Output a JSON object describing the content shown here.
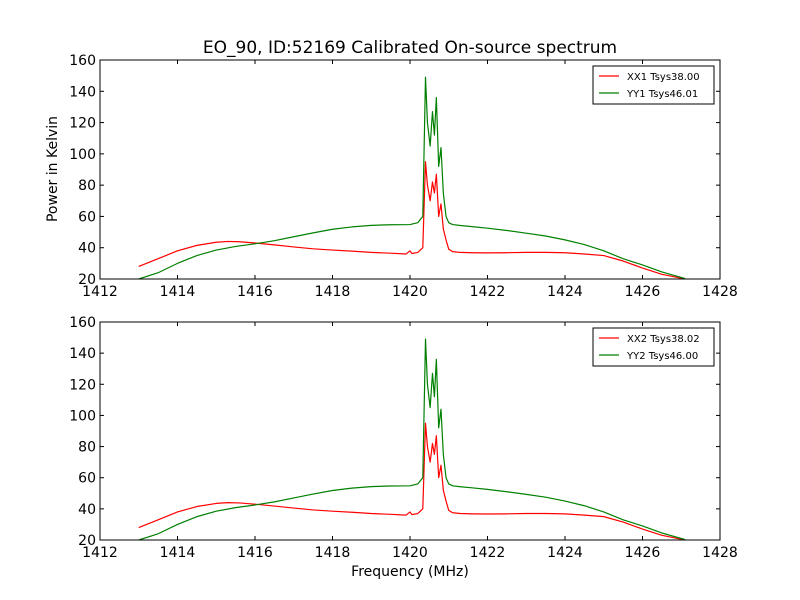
{
  "chart_data": {
    "type": "line",
    "title": "EO_90, ID:52169 Calibrated On-source spectrum",
    "xlabel": "Frequency (MHz)",
    "ylabel": "Power in Kelvin",
    "xlim": [
      1412,
      1428
    ],
    "ylim": [
      20,
      160
    ],
    "xticks": [
      "1412",
      "1414",
      "1416",
      "1418",
      "1420",
      "1422",
      "1424",
      "1426",
      "1428"
    ],
    "yticks": [
      "20",
      "40",
      "60",
      "80",
      "100",
      "120",
      "140",
      "160"
    ],
    "grid": false,
    "legend_position": "top-right",
    "panels": [
      {
        "series": [
          {
            "name": "XX1 Tsys38.00",
            "color": "#ff0000",
            "x": [
              1413.0,
              1413.5,
              1414.0,
              1414.5,
              1415.0,
              1415.3,
              1415.6,
              1416.0,
              1416.5,
              1417.0,
              1417.5,
              1418.0,
              1418.5,
              1419.0,
              1419.5,
              1419.9,
              1420.0,
              1420.05,
              1420.2,
              1420.33,
              1420.4,
              1420.45,
              1420.52,
              1420.58,
              1420.63,
              1420.68,
              1420.74,
              1420.8,
              1420.86,
              1420.93,
              1421.0,
              1421.1,
              1421.3,
              1421.6,
              1422.0,
              1422.5,
              1423.0,
              1423.5,
              1424.0,
              1424.5,
              1425.0,
              1425.5,
              1426.0,
              1426.5,
              1427.0,
              1427.1
            ],
            "y": [
              28,
              33,
              38,
              41.5,
              43.5,
              44,
              43.8,
              43,
              41.8,
              40.5,
              39.3,
              38.5,
              37.8,
              37,
              36.5,
              36,
              38,
              36.3,
              37,
              40,
              95,
              80,
              70,
              82,
              75,
              87,
              60,
              68,
              52,
              45,
              39,
              37.5,
              37,
              36.8,
              36.7,
              36.8,
              37,
              37,
              36.8,
              36,
              35,
              31.5,
              27,
              23,
              20.5,
              20
            ]
          },
          {
            "name": "YY1 Tsys46.01",
            "color": "#008000",
            "x": [
              1413.0,
              1413.5,
              1414.0,
              1414.5,
              1415.0,
              1415.5,
              1416.0,
              1416.5,
              1417.0,
              1417.5,
              1418.0,
              1418.5,
              1419.0,
              1419.5,
              1420.0,
              1420.2,
              1420.33,
              1420.4,
              1420.45,
              1420.52,
              1420.58,
              1420.63,
              1420.68,
              1420.74,
              1420.8,
              1420.86,
              1420.93,
              1421.0,
              1421.1,
              1421.3,
              1421.6,
              1422.0,
              1422.5,
              1423.0,
              1423.5,
              1424.0,
              1424.5,
              1425.0,
              1425.5,
              1426.0,
              1426.5,
              1427.0,
              1427.1
            ],
            "y": [
              20,
              24,
              30,
              35,
              38.5,
              40.8,
              42.5,
              44.5,
              47,
              49.5,
              51.8,
              53.3,
              54.3,
              54.7,
              54.8,
              56,
              60,
              149,
              120,
              105,
              127,
              112,
              136,
              92,
              104,
              75,
              60,
              56,
              54.8,
              54.2,
              53.5,
              52.5,
              51,
              49.3,
              47.5,
              45,
              42,
              38,
              33,
              29,
              24.5,
              21,
              20.3
            ]
          }
        ]
      },
      {
        "series": [
          {
            "name": "XX2 Tsys38.02",
            "color": "#ff0000",
            "x": [
              1413.0,
              1413.5,
              1414.0,
              1414.5,
              1415.0,
              1415.3,
              1415.6,
              1416.0,
              1416.5,
              1417.0,
              1417.5,
              1418.0,
              1418.5,
              1419.0,
              1419.5,
              1419.9,
              1420.0,
              1420.05,
              1420.2,
              1420.33,
              1420.4,
              1420.45,
              1420.52,
              1420.58,
              1420.63,
              1420.68,
              1420.74,
              1420.8,
              1420.86,
              1420.93,
              1421.0,
              1421.1,
              1421.3,
              1421.6,
              1422.0,
              1422.5,
              1423.0,
              1423.5,
              1424.0,
              1424.5,
              1425.0,
              1425.5,
              1426.0,
              1426.5,
              1427.0,
              1427.1
            ],
            "y": [
              28,
              33,
              38,
              41.5,
              43.5,
              44,
              43.8,
              43,
              41.8,
              40.5,
              39.3,
              38.5,
              37.8,
              37,
              36.5,
              36,
              38,
              36.3,
              37,
              40,
              95,
              80,
              70,
              82,
              75,
              87,
              60,
              68,
              52,
              45,
              39,
              37.5,
              37,
              36.8,
              36.7,
              36.8,
              37,
              37,
              36.8,
              36,
              35,
              31.5,
              27,
              23,
              20.5,
              20
            ]
          },
          {
            "name": "YY2 Tsys46.00",
            "color": "#008000",
            "x": [
              1413.0,
              1413.5,
              1414.0,
              1414.5,
              1415.0,
              1415.5,
              1416.0,
              1416.5,
              1417.0,
              1417.5,
              1418.0,
              1418.5,
              1419.0,
              1419.5,
              1420.0,
              1420.2,
              1420.33,
              1420.4,
              1420.45,
              1420.52,
              1420.58,
              1420.63,
              1420.68,
              1420.74,
              1420.8,
              1420.86,
              1420.93,
              1421.0,
              1421.1,
              1421.3,
              1421.6,
              1422.0,
              1422.5,
              1423.0,
              1423.5,
              1424.0,
              1424.5,
              1425.0,
              1425.5,
              1426.0,
              1426.5,
              1427.0,
              1427.1
            ],
            "y": [
              20,
              24,
              30,
              35,
              38.5,
              40.8,
              42.5,
              44.5,
              47,
              49.5,
              51.8,
              53.3,
              54.3,
              54.7,
              54.8,
              56,
              60,
              149,
              120,
              105,
              127,
              112,
              136,
              92,
              104,
              75,
              60,
              56,
              54.8,
              54.2,
              53.5,
              52.5,
              51,
              49.3,
              47.5,
              45,
              42,
              38,
              33,
              29,
              24.5,
              21,
              20.3
            ]
          }
        ]
      }
    ]
  }
}
